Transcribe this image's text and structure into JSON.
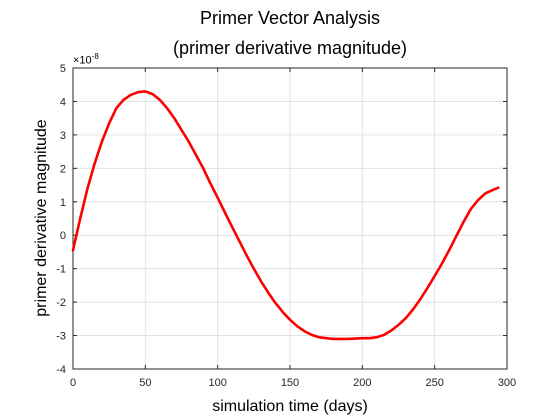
{
  "chart_data": {
    "type": "line",
    "title": [
      "Primer Vector Analysis",
      "(primer derivative magnitude)"
    ],
    "xlabel": "simulation time (days)",
    "ylabel": "primer derivative magnitude",
    "y_exponent": {
      "base": "×10",
      "power": "-8"
    },
    "xlim": [
      0,
      300
    ],
    "ylim": [
      -4,
      5
    ],
    "xticks": [
      "0",
      "50",
      "100",
      "150",
      "200",
      "250",
      "300"
    ],
    "yticks": [
      "-4",
      "-3",
      "-2",
      "-1",
      "0",
      "1",
      "2",
      "3",
      "4",
      "5"
    ],
    "grid": true,
    "series": [
      {
        "color": "#ff0000",
        "x": [
          0,
          5,
          10,
          15,
          20,
          25,
          30,
          35,
          40,
          45,
          50,
          55,
          60,
          65,
          70,
          75,
          80,
          85,
          90,
          95,
          100,
          105,
          110,
          115,
          120,
          125,
          130,
          135,
          140,
          145,
          150,
          155,
          160,
          165,
          170,
          175,
          180,
          185,
          190,
          195,
          200,
          205,
          210,
          215,
          220,
          225,
          230,
          235,
          240,
          245,
          250,
          255,
          260,
          265,
          270,
          275,
          280,
          285,
          290,
          294
        ],
        "y": [
          -0.45,
          0.5,
          1.4,
          2.15,
          2.8,
          3.35,
          3.8,
          4.05,
          4.2,
          4.28,
          4.3,
          4.22,
          4.05,
          3.8,
          3.5,
          3.15,
          2.8,
          2.4,
          2.0,
          1.55,
          1.12,
          0.68,
          0.25,
          -0.18,
          -0.6,
          -1.0,
          -1.38,
          -1.72,
          -2.03,
          -2.3,
          -2.53,
          -2.72,
          -2.87,
          -2.98,
          -3.05,
          -3.08,
          -3.1,
          -3.1,
          -3.1,
          -3.09,
          -3.08,
          -3.08,
          -3.05,
          -2.98,
          -2.85,
          -2.68,
          -2.48,
          -2.22,
          -1.92,
          -1.58,
          -1.22,
          -0.85,
          -0.45,
          -0.02,
          0.4,
          0.78,
          1.05,
          1.25,
          1.35,
          1.42
        ]
      }
    ]
  }
}
